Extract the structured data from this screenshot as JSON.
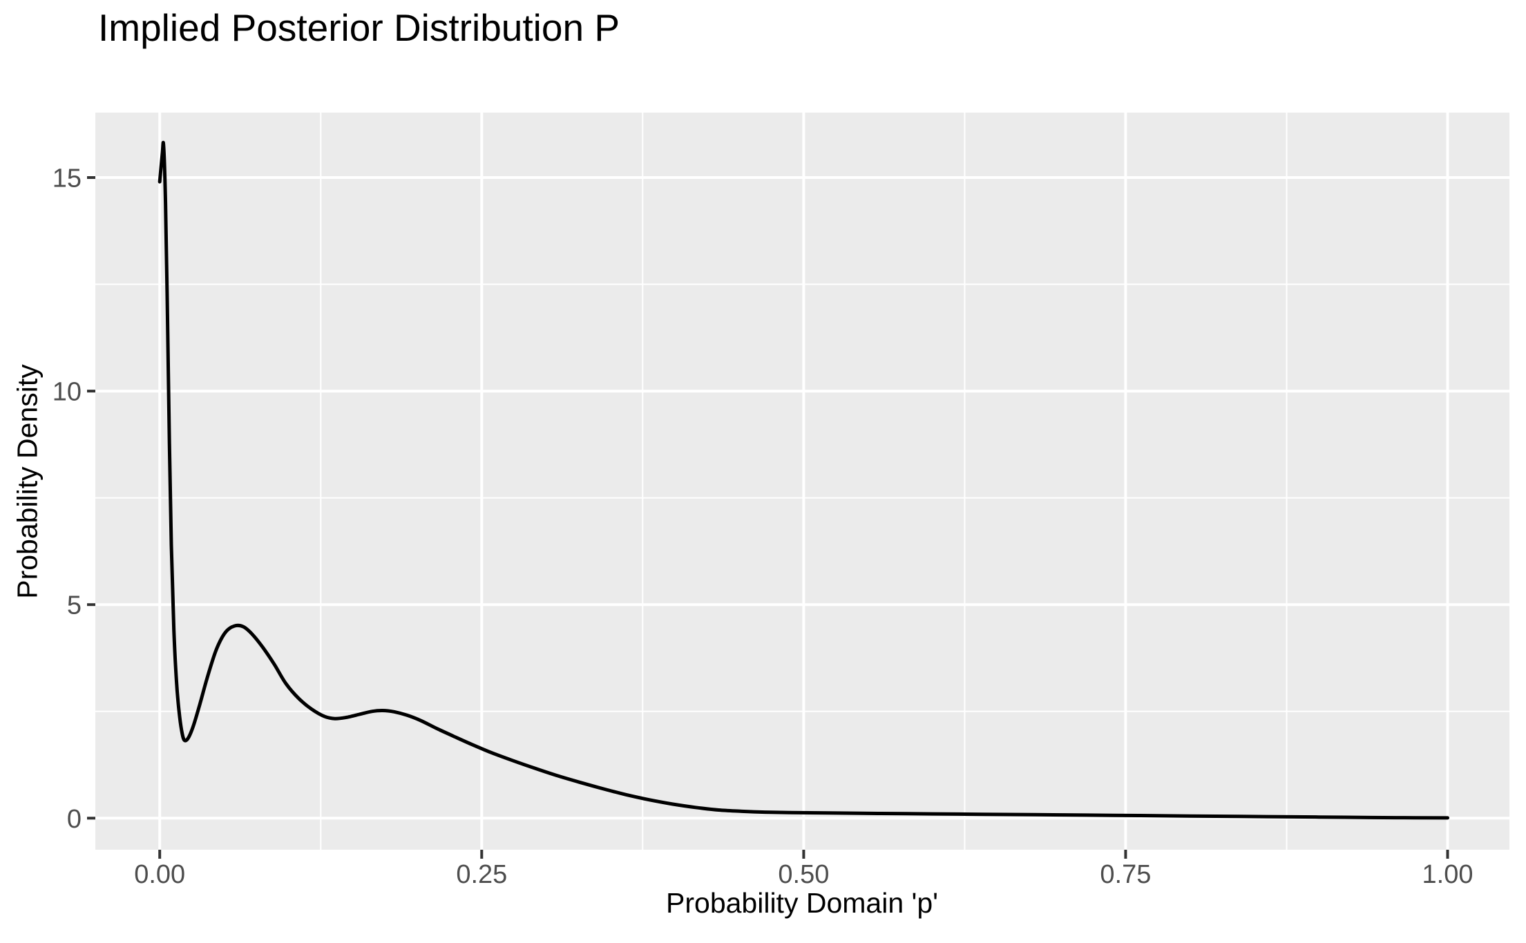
{
  "chart_data": {
    "type": "line",
    "title": "Implied Posterior Distribution P",
    "xlabel": "Probability Domain 'p'",
    "ylabel": "Probability Density",
    "x_ticks": {
      "values": [
        0,
        0.25,
        0.5,
        0.75,
        1
      ],
      "labels": [
        "0.00",
        "0.25",
        "0.50",
        "0.75",
        "1.00"
      ]
    },
    "y_ticks": {
      "values": [
        0,
        5,
        10,
        15
      ],
      "labels": [
        "0",
        "5",
        "10",
        "15"
      ]
    },
    "x_minor": [
      0.125,
      0.375,
      0.625,
      0.875
    ],
    "y_minor": [
      2.5,
      7.5,
      12.5
    ],
    "xlim": [
      -0.05,
      1.048
    ],
    "ylim": [
      -0.74,
      16.52
    ],
    "grid": "major-and-minor-white-on-grey-panel",
    "legend": "none",
    "style": {
      "panel_bg": "#EBEBEB",
      "grid_color": "#FFFFFF",
      "curve_color": "#000000",
      "tick_label_color": "#4D4D4D",
      "tick_mark_color": "#333333",
      "axis_title_color": "#000000",
      "title_color": "#000000",
      "background": "#FFFFFF"
    },
    "series": [
      {
        "name": "implied-posterior-density",
        "x": [
          0,
          0.002,
          0.003,
          0.0045,
          0.006,
          0.0075,
          0.009,
          0.011,
          0.013,
          0.015,
          0.017,
          0.019,
          0.022,
          0.026,
          0.031,
          0.037,
          0.044,
          0.051,
          0.058,
          0.065,
          0.072,
          0.08,
          0.089,
          0.098,
          0.108,
          0.118,
          0.128,
          0.136,
          0.145,
          0.155,
          0.165,
          0.173,
          0.182,
          0.192,
          0.203,
          0.215,
          0.228,
          0.242,
          0.257,
          0.273,
          0.29,
          0.308,
          0.326,
          0.344,
          0.362,
          0.38,
          0.398,
          0.416,
          0.434,
          0.452,
          0.47,
          0.49,
          0.52,
          0.56,
          0.6,
          0.64,
          0.68,
          0.72,
          0.76,
          0.8,
          0.84,
          0.88,
          0.92,
          0.96,
          1
        ],
        "y": [
          14.9,
          15.55,
          15.75,
          14.4,
          11.8,
          8.8,
          6.4,
          4.4,
          3.2,
          2.5,
          2.05,
          1.83,
          1.87,
          2.15,
          2.65,
          3.3,
          3.95,
          4.35,
          4.5,
          4.48,
          4.3,
          4.0,
          3.6,
          3.15,
          2.8,
          2.55,
          2.38,
          2.33,
          2.36,
          2.43,
          2.5,
          2.52,
          2.49,
          2.41,
          2.28,
          2.1,
          1.92,
          1.73,
          1.54,
          1.36,
          1.18,
          1.0,
          0.84,
          0.69,
          0.55,
          0.43,
          0.33,
          0.25,
          0.19,
          0.16,
          0.14,
          0.13,
          0.12,
          0.11,
          0.1,
          0.09,
          0.08,
          0.07,
          0.06,
          0.05,
          0.04,
          0.03,
          0.02,
          0.01,
          0.005
        ],
        "annotations": {
          "peak": {
            "x": 0.002,
            "y": 15.75
          },
          "local_min_1": {
            "x": 0.019,
            "y": 1.83
          },
          "local_max_1": {
            "x": 0.06,
            "y": 4.5
          },
          "local_min_2": {
            "x": 0.136,
            "y": 2.33
          },
          "local_max_2": {
            "x": 0.17,
            "y": 2.52
          }
        }
      }
    ]
  }
}
